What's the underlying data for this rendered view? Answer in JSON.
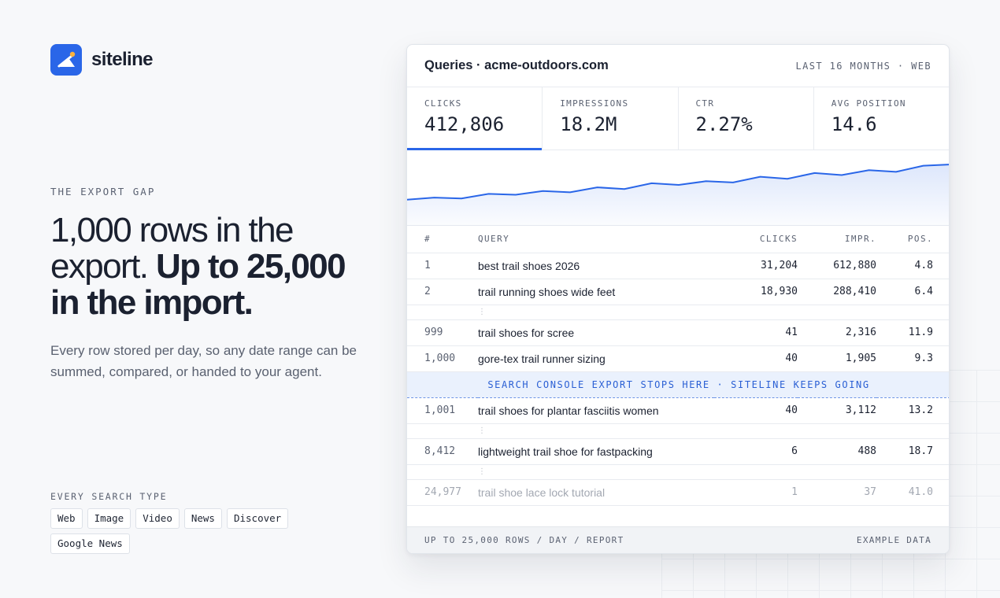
{
  "brand": {
    "name": "siteline",
    "accent": "#2a66e8"
  },
  "hero": {
    "eyebrow": "THE EXPORT GAP",
    "headline_light": "1,000 rows in the export.",
    "headline_bold": "Up to 25,000 in the import.",
    "subcopy": "Every row stored per day, so any date range can be summed, compared, or handed to your agent."
  },
  "search_types": {
    "label": "EVERY SEARCH TYPE",
    "items": [
      "Web",
      "Image",
      "Video",
      "News",
      "Discover",
      "Google News"
    ]
  },
  "card": {
    "title": "Queries · acme-outdoors.com",
    "range": "LAST 16 MONTHS · WEB",
    "metrics": [
      {
        "label": "CLICKS",
        "value": "412,806",
        "active": true
      },
      {
        "label": "IMPRESSIONS",
        "value": "18.2M",
        "active": false
      },
      {
        "label": "CTR",
        "value": "2.27%",
        "active": false
      },
      {
        "label": "AVG POSITION",
        "value": "14.6",
        "active": false
      }
    ],
    "trend": [
      0.14,
      0.19,
      0.17,
      0.28,
      0.26,
      0.35,
      0.32,
      0.44,
      0.4,
      0.54,
      0.5,
      0.59,
      0.56,
      0.7,
      0.65,
      0.79,
      0.74,
      0.86,
      0.82,
      0.97,
      1.0
    ],
    "table": {
      "headers": {
        "num": "#",
        "query": "QUERY",
        "clicks": "CLICKS",
        "impr": "IMPR.",
        "pos": "POS."
      },
      "rows": [
        {
          "num": "1",
          "query": "best trail shoes 2026",
          "clicks": "31,204",
          "impr": "612,880",
          "pos": "4.8"
        },
        {
          "num": "2",
          "query": "trail running shoes wide feet",
          "clicks": "18,930",
          "impr": "288,410",
          "pos": "6.4"
        },
        {
          "num": "999",
          "query": "trail shoes for scree",
          "clicks": "41",
          "impr": "2,316",
          "pos": "11.9"
        },
        {
          "num": "1,000",
          "query": "gore-tex trail runner sizing",
          "clicks": "40",
          "impr": "1,905",
          "pos": "9.3"
        },
        {
          "num": "1,001",
          "query": "trail shoes for plantar fasciitis women",
          "clicks": "40",
          "impr": "3,112",
          "pos": "13.2"
        },
        {
          "num": "8,412",
          "query": "lightweight trail shoe for fastpacking",
          "clicks": "6",
          "impr": "488",
          "pos": "18.7"
        },
        {
          "num": "24,977",
          "query": "trail shoe lace lock tutorial",
          "clicks": "1",
          "impr": "37",
          "pos": "41.0"
        }
      ],
      "gap_glyph": "⋮",
      "cutoff_text": "SEARCH CONSOLE EXPORT STOPS HERE · SITELINE KEEPS GOING"
    },
    "footer": {
      "left": "UP TO 25,000 ROWS / DAY / REPORT",
      "right": "EXAMPLE DATA"
    }
  }
}
